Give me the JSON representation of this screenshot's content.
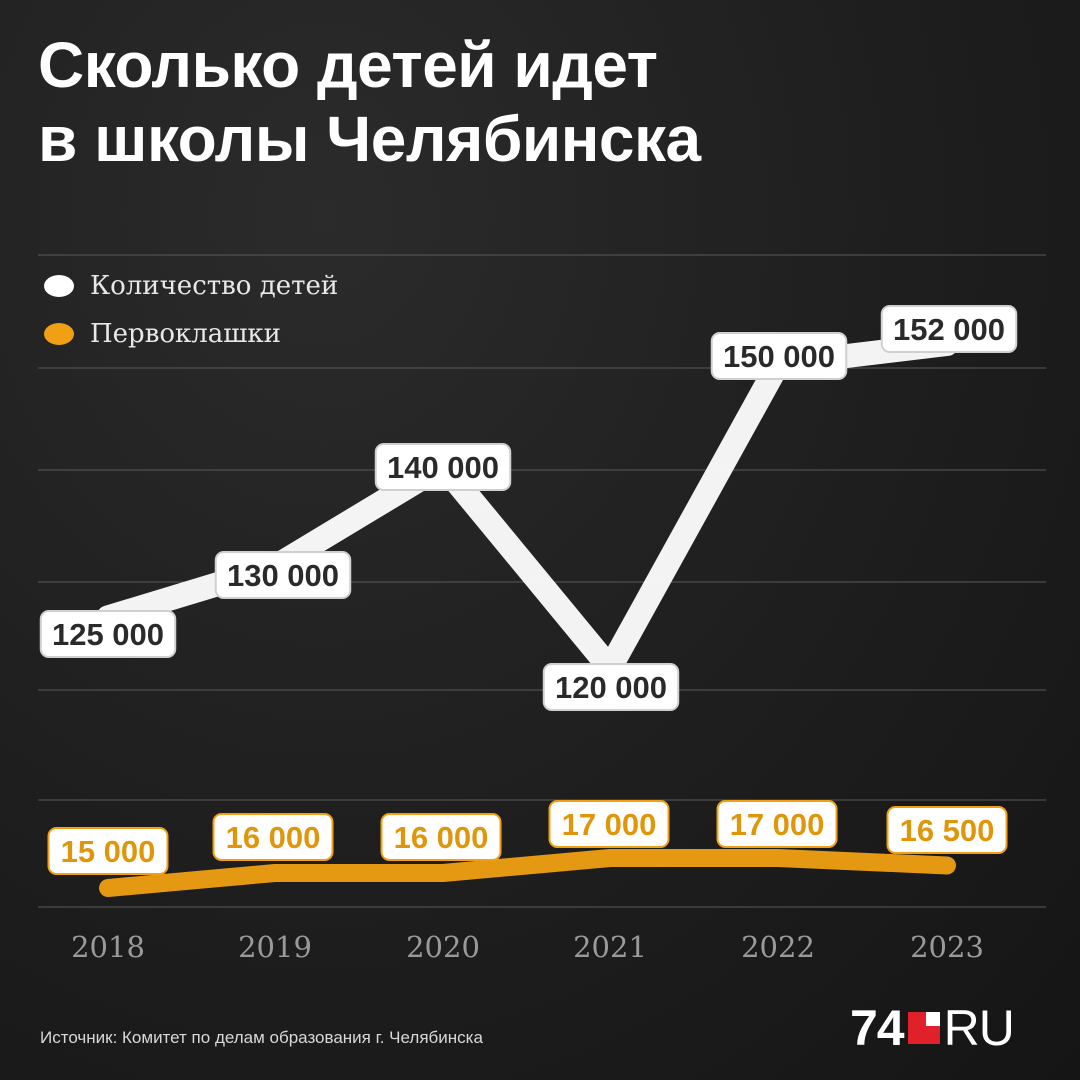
{
  "title": {
    "line1": "Сколько детей идет",
    "line2": "в школы Челябинска"
  },
  "legend": [
    {
      "label": "Количество детей",
      "color": "#ffffff"
    },
    {
      "label": "Первоклашки",
      "color": "#f0a012"
    }
  ],
  "source": "Источник: Комитет по делам образования г. Челябинска",
  "logo": {
    "number": "74",
    "suffix": "RU"
  },
  "colors": {
    "total": "#ffffff",
    "firstgraders": "#f0a012",
    "label_text_total": "#2a2a2a",
    "label_text_first": "#e0960a",
    "background": "#1c1c1c"
  },
  "chart_data": {
    "type": "line",
    "categories": [
      "2018",
      "2019",
      "2020",
      "2021",
      "2022",
      "2023"
    ],
    "series": [
      {
        "name": "Количество детей",
        "values": [
          125000,
          130000,
          140000,
          120000,
          150000,
          152000
        ],
        "labels": [
          "125 000",
          "130 000",
          "140 000",
          "120 000",
          "150 000",
          "152 000"
        ]
      },
      {
        "name": "Первоклашки",
        "values": [
          15000,
          16000,
          16000,
          17000,
          17000,
          16500
        ],
        "labels": [
          "15 000",
          "16 000",
          "16 000",
          "17 000",
          "17 000",
          "16 500"
        ]
      }
    ],
    "legend_position": "top-left",
    "grid": true
  }
}
